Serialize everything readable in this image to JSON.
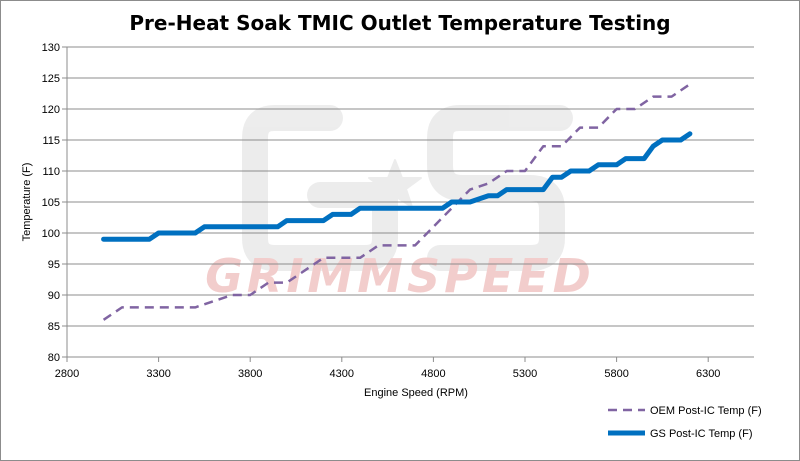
{
  "chart_data": {
    "type": "line",
    "title": "Pre-Heat Soak TMIC Outlet Temperature Testing",
    "xlabel": "Engine Speed (RPM)",
    "ylabel": "Temperature (F)",
    "xlim": [
      2800,
      6550
    ],
    "ylim": [
      80,
      130
    ],
    "xticks": [
      2800,
      3300,
      3800,
      4300,
      4800,
      5300,
      5800,
      6300
    ],
    "yticks": [
      80,
      85,
      90,
      95,
      100,
      105,
      110,
      115,
      120,
      125,
      130
    ],
    "grid": "horizontal",
    "legend_position": "bottom-right",
    "series": [
      {
        "name": "OEM Post-IC Temp (F)",
        "color": "#8064a2",
        "style": "dashed",
        "x": [
          3000,
          3100,
          3200,
          3300,
          3400,
          3500,
          3600,
          3700,
          3800,
          3900,
          4000,
          4100,
          4200,
          4300,
          4400,
          4500,
          4600,
          4700,
          4800,
          4900,
          5000,
          5100,
          5200,
          5300,
          5400,
          5500,
          5600,
          5700,
          5800,
          5900,
          6000,
          6100,
          6200
        ],
        "y": [
          86,
          88,
          88,
          88,
          88,
          88,
          89,
          90,
          90,
          92,
          92,
          94,
          96,
          96,
          96,
          98,
          98,
          98,
          101,
          104,
          107,
          108,
          110,
          110,
          114,
          114,
          117,
          117,
          120,
          120,
          122,
          122,
          124
        ]
      },
      {
        "name": "GS Post-IC Temp (F)",
        "color": "#0070c0",
        "style": "solid",
        "x": [
          3000,
          3100,
          3200,
          3250,
          3300,
          3400,
          3450,
          3500,
          3550,
          3600,
          3700,
          3800,
          3900,
          3950,
          4000,
          4100,
          4150,
          4200,
          4250,
          4300,
          4350,
          4400,
          4500,
          4600,
          4700,
          4800,
          4850,
          4900,
          4950,
          5000,
          5100,
          5150,
          5200,
          5300,
          5350,
          5400,
          5450,
          5500,
          5550,
          5600,
          5650,
          5700,
          5750,
          5800,
          5850,
          5900,
          5950,
          6000,
          6050,
          6100,
          6150,
          6200
        ],
        "y": [
          99,
          99,
          99,
          99,
          100,
          100,
          100,
          100,
          101,
          101,
          101,
          101,
          101,
          101,
          102,
          102,
          102,
          102,
          103,
          103,
          103,
          104,
          104,
          104,
          104,
          104,
          104,
          105,
          105,
          105,
          106,
          106,
          107,
          107,
          107,
          107,
          109,
          109,
          110,
          110,
          110,
          111,
          111,
          111,
          112,
          112,
          112,
          114,
          115,
          115,
          115,
          116
        ]
      }
    ]
  },
  "watermark": {
    "brand_text": "GRIMMSPEED",
    "brand_color": "#d9534f",
    "logo_color": "#e6e6e6"
  }
}
